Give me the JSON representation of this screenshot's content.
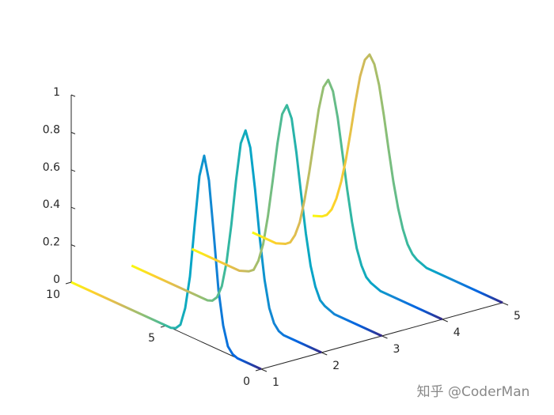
{
  "chart_data": {
    "type": "line3d",
    "x": [
      0,
      0.25,
      0.5,
      0.75,
      1,
      1.25,
      1.5,
      1.75,
      2,
      2.25,
      2.5,
      2.75,
      3,
      3.25,
      3.5,
      3.75,
      4,
      4.25,
      4.5,
      4.75,
      5,
      5.25,
      5.5,
      5.75,
      6,
      6.25,
      6.5,
      6.75,
      7,
      7.25,
      7.5,
      7.75,
      8,
      8.25,
      8.5,
      8.75,
      9,
      9.25,
      9.5,
      9.75,
      10
    ],
    "series": [
      {
        "y": 1,
        "values": [
          0,
          0,
          0,
          0,
          0,
          0,
          0.01,
          0.04,
          0.14,
          0.32,
          0.61,
          0.88,
          1,
          0.88,
          0.61,
          0.32,
          0.14,
          0.04,
          0.01,
          0,
          0,
          0,
          0,
          0,
          0,
          0,
          0,
          0,
          0,
          0,
          0,
          0,
          0,
          0,
          0,
          0,
          0,
          0,
          0,
          0,
          0
        ]
      },
      {
        "y": 2,
        "values": [
          0,
          0,
          0,
          0,
          0,
          0,
          0,
          0,
          0,
          0.01,
          0.04,
          0.11,
          0.25,
          0.46,
          0.71,
          0.92,
          1,
          0.92,
          0.71,
          0.46,
          0.25,
          0.11,
          0.04,
          0.01,
          0,
          0,
          0,
          0,
          0,
          0,
          0,
          0,
          0,
          0,
          0,
          0,
          0,
          0,
          0,
          0,
          0
        ]
      },
      {
        "y": 3,
        "values": [
          0,
          0,
          0,
          0,
          0,
          0,
          0,
          0,
          0,
          0,
          0,
          0.01,
          0.02,
          0.04,
          0.1,
          0.2,
          0.36,
          0.56,
          0.77,
          0.94,
          1,
          0.94,
          0.77,
          0.56,
          0.36,
          0.2,
          0.1,
          0.04,
          0.02,
          0.01,
          0,
          0,
          0,
          0,
          0,
          0,
          0,
          0,
          0,
          0,
          0
        ]
      },
      {
        "y": 4,
        "values": [
          0,
          0,
          0,
          0,
          0,
          0,
          0,
          0,
          0,
          0,
          0,
          0,
          0,
          0,
          0.01,
          0.02,
          0.04,
          0.09,
          0.17,
          0.3,
          0.46,
          0.64,
          0.82,
          0.95,
          1,
          0.95,
          0.82,
          0.64,
          0.46,
          0.3,
          0.17,
          0.09,
          0.04,
          0.02,
          0.01,
          0,
          0,
          0,
          0,
          0,
          0
        ]
      },
      {
        "y": 5,
        "values": [
          0,
          0,
          0,
          0,
          0,
          0,
          0,
          0,
          0,
          0,
          0,
          0,
          0,
          0,
          0,
          0,
          0,
          0.01,
          0.02,
          0.04,
          0.08,
          0.15,
          0.25,
          0.38,
          0.54,
          0.71,
          0.86,
          0.96,
          1,
          0.96,
          0.86,
          0.71,
          0.54,
          0.38,
          0.25,
          0.15,
          0.08,
          0.04,
          0.02,
          0.01,
          0
        ]
      }
    ],
    "colormap": [
      "#352A87",
      "#0363E1",
      "#1485D4",
      "#06A7C6",
      "#38B99E",
      "#92BF73",
      "#D9BA56",
      "#FCCE2E",
      "#F9FB0E"
    ],
    "xlim": [
      0,
      10
    ],
    "xticks": [
      0,
      5,
      10
    ],
    "ylim": [
      1,
      5
    ],
    "yticks": [
      1,
      2,
      3,
      4,
      5
    ],
    "zlim": [
      0,
      1
    ],
    "zticks": [
      0,
      0.2,
      0.4,
      0.6,
      0.8,
      1
    ],
    "watermark": "知乎 @CoderMan"
  }
}
